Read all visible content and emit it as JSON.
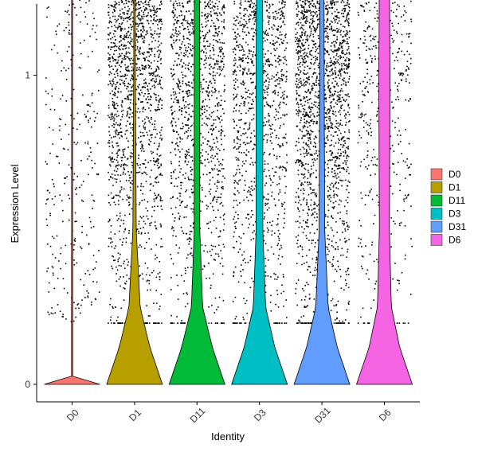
{
  "chart_data": {
    "type": "violin",
    "title": "",
    "xlabel": "Identity",
    "ylabel": "Expression Level",
    "ylim": [
      -0.2,
      3.6
    ],
    "yticks": [
      0,
      1,
      2,
      3
    ],
    "grid": false,
    "legend_position": "right",
    "categories": [
      "D0",
      "D1",
      "D11",
      "D3",
      "D31",
      "D6"
    ],
    "series": [
      {
        "name": "D0",
        "color": "#F8766D",
        "max": 3.18,
        "point_density": 0.25,
        "shape": [
          [
            0,
            1
          ],
          [
            0.02,
            0.02
          ],
          [
            3.18,
            0.01
          ]
        ]
      },
      {
        "name": "D1",
        "color": "#B79F00",
        "max": 3.08,
        "point_density": 1.25,
        "shape": [
          [
            0,
            1
          ],
          [
            0.12,
            0.55
          ],
          [
            0.25,
            0.2
          ],
          [
            0.5,
            0.06
          ],
          [
            1.0,
            0.03
          ],
          [
            2.0,
            0.02
          ],
          [
            3.08,
            0.01
          ]
        ]
      },
      {
        "name": "D11",
        "color": "#00BA38",
        "max": 3.28,
        "point_density": 1.0,
        "shape": [
          [
            0,
            1
          ],
          [
            0.12,
            0.55
          ],
          [
            0.25,
            0.2
          ],
          [
            0.5,
            0.1
          ],
          [
            1.0,
            0.1
          ],
          [
            1.5,
            0.09
          ],
          [
            2.0,
            0.06
          ],
          [
            2.4,
            0.03
          ],
          [
            3.28,
            0.01
          ]
        ]
      },
      {
        "name": "D3",
        "color": "#00BFC4",
        "max": 2.92,
        "point_density": 0.9,
        "shape": [
          [
            0,
            1
          ],
          [
            0.12,
            0.55
          ],
          [
            0.25,
            0.22
          ],
          [
            0.5,
            0.12
          ],
          [
            1.0,
            0.12
          ],
          [
            1.5,
            0.1
          ],
          [
            2.0,
            0.07
          ],
          [
            2.3,
            0.04
          ],
          [
            2.92,
            0.01
          ]
        ]
      },
      {
        "name": "D31",
        "color": "#619CFF",
        "max": 3.53,
        "point_density": 1.5,
        "shape": [
          [
            0,
            1
          ],
          [
            0.12,
            0.55
          ],
          [
            0.25,
            0.22
          ],
          [
            0.5,
            0.1
          ],
          [
            1.0,
            0.08
          ],
          [
            1.5,
            0.07
          ],
          [
            2.0,
            0.05
          ],
          [
            2.7,
            0.03
          ],
          [
            3.53,
            0.01
          ]
        ]
      },
      {
        "name": "D6",
        "color": "#F564E3",
        "max": 2.92,
        "point_density": 0.4,
        "shape": [
          [
            0,
            1
          ],
          [
            0.12,
            0.55
          ],
          [
            0.25,
            0.25
          ],
          [
            0.5,
            0.18
          ],
          [
            1.0,
            0.2
          ],
          [
            1.5,
            0.17
          ],
          [
            2.0,
            0.1
          ],
          [
            2.4,
            0.04
          ],
          [
            2.92,
            0.01
          ]
        ]
      }
    ]
  }
}
